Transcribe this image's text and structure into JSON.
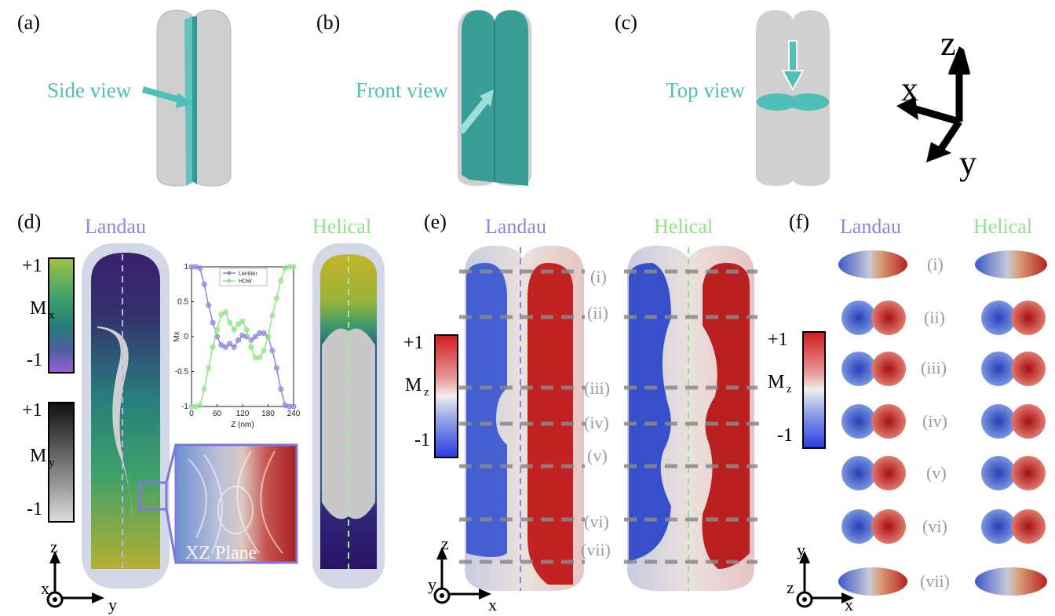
{
  "panels": {
    "a": {
      "letter": "(a)",
      "view": "Side view"
    },
    "b": {
      "letter": "(b)",
      "view": "Front view"
    },
    "c": {
      "letter": "(c)",
      "view": "Top view"
    },
    "d": {
      "letter": "(d)",
      "landau": "Landau",
      "helical": "Helical",
      "inset": "XZ Plane"
    },
    "e": {
      "letter": "(e)",
      "landau": "Landau",
      "helical": "Helical"
    },
    "f": {
      "letter": "(f)",
      "landau": "Landau",
      "helical": "Helical"
    }
  },
  "axes_big": {
    "z": "z",
    "x": "x",
    "y": "y"
  },
  "axes_d": {
    "z": "z",
    "x": "x",
    "y": "y"
  },
  "axes_e": {
    "z": "z",
    "y": "y",
    "x": "x"
  },
  "axes_f": {
    "y": "y",
    "z": "z",
    "x": "x"
  },
  "colorbars": {
    "mx": {
      "top": "+1",
      "label": "M",
      "sub": "x",
      "bottom": "-1"
    },
    "my": {
      "top": "+1",
      "label": "M",
      "sub": "y",
      "bottom": "-1"
    },
    "mz_e": {
      "top": "+1",
      "label": "M",
      "sub": "z",
      "bottom": "-1"
    },
    "mz_f": {
      "top": "+1",
      "label": "M",
      "sub": "z",
      "bottom": "-1"
    }
  },
  "roman_labels": [
    "(i)",
    "(ii)",
    "(iii)",
    "(iv)",
    "(v)",
    "(vi)",
    "(vii)"
  ],
  "colors": {
    "teal": "#4fc0b8",
    "landau": "#8a86e6",
    "helical": "#8fe585",
    "red": "#c0201e",
    "blue": "#3550c8"
  },
  "chart_data": {
    "type": "line",
    "xlabel": "Z (nm)",
    "ylabel": "Mx",
    "xlim": [
      0,
      240
    ],
    "ylim": [
      -1,
      1
    ],
    "xticks": [
      "0",
      "60",
      "120",
      "180",
      "240"
    ],
    "yticks": [
      "1",
      "0.5",
      "0",
      "-0.5",
      "-1"
    ],
    "legend_position": "top",
    "x": [
      0,
      10,
      20,
      30,
      40,
      50,
      60,
      70,
      80,
      90,
      100,
      110,
      120,
      130,
      140,
      150,
      160,
      170,
      180,
      190,
      200,
      210,
      220,
      230,
      240
    ],
    "series": [
      {
        "name": "Landau",
        "color": "#8a86e6",
        "values": [
          1,
          1,
          0.98,
          0.75,
          0.45,
          0.2,
          0.0,
          -0.12,
          -0.15,
          -0.1,
          -0.15,
          -0.05,
          0.02,
          0.0,
          -0.05,
          0.0,
          0.05,
          0.05,
          0.0,
          -0.2,
          -0.45,
          -0.75,
          -0.98,
          -1,
          -1
        ]
      },
      {
        "name": "HDW",
        "color": "#8fe585",
        "values": [
          -1,
          -1,
          -0.98,
          -0.75,
          -0.45,
          -0.15,
          0.1,
          0.32,
          0.35,
          0.2,
          0.1,
          0.18,
          0.22,
          0.1,
          -0.15,
          -0.3,
          -0.3,
          -0.2,
          0.0,
          0.3,
          0.55,
          0.8,
          0.98,
          1,
          1
        ]
      }
    ]
  }
}
